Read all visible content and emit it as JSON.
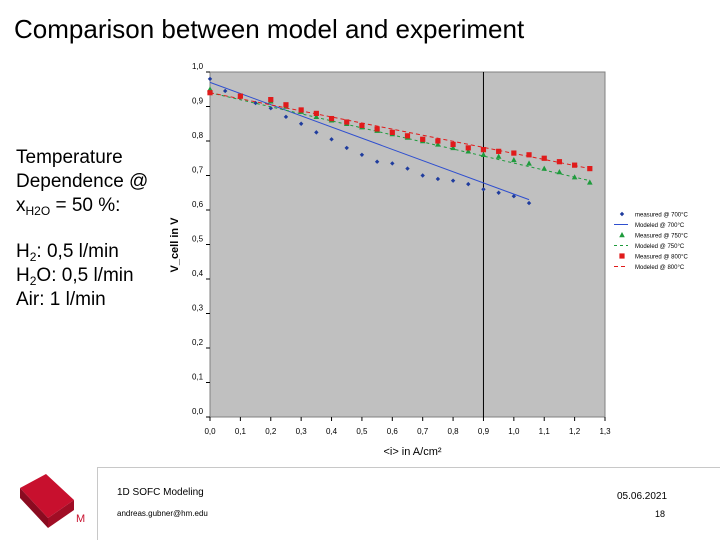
{
  "slide": {
    "title": "Comparison between model and experiment",
    "conditions_heading": [
      "Temperature",
      "Dependence @"
    ],
    "x_h2o": {
      "x": "x",
      "sub": "H2O",
      "rest": " = 50 %:"
    },
    "flows": [
      {
        "pre": "H",
        "sub": "2",
        "post": ": 0,5 l/min"
      },
      {
        "pre": "H",
        "sub": "2",
        "post": "O: 0,5 l/min"
      },
      {
        "pre": "Air: 1 l/min",
        "sub": "",
        "post": ""
      }
    ]
  },
  "footer": {
    "title": "1D SOFC Modeling",
    "email": "andreas.gubner@hm.edu",
    "date": "05.06.2021",
    "page": "18"
  },
  "logo": {
    "letter": "M",
    "color": "#c8102e"
  },
  "chart_data": {
    "type": "scatter",
    "title": "",
    "xlabel": "<i> in A/cm²",
    "ylabel": "V_cell in V",
    "xlim": [
      0.0,
      1.3
    ],
    "ylim": [
      0.0,
      1.0
    ],
    "xticks": [
      "0,0",
      "0,1",
      "0,2",
      "0,3",
      "0,4",
      "0,5",
      "0,6",
      "0,7",
      "0,8",
      "0,9",
      "1,0",
      "1,1",
      "1,2",
      "1,3"
    ],
    "yticks": [
      "0,0",
      "0,1",
      "0,2",
      "0,3",
      "0,4",
      "0,5",
      "0,6",
      "0,7",
      "0,8",
      "0,9",
      "1,0"
    ],
    "vline_x": 0.9,
    "background": "#c0c0c0",
    "grid": false,
    "legend_position": "right",
    "series": [
      {
        "name": "measured @ 700°C",
        "kind": "points",
        "marker": "diamond",
        "color": "#1f3c9e",
        "x": [
          0.0,
          0.05,
          0.1,
          0.15,
          0.2,
          0.25,
          0.3,
          0.35,
          0.4,
          0.45,
          0.5,
          0.55,
          0.6,
          0.65,
          0.7,
          0.75,
          0.8,
          0.85,
          0.9,
          0.95,
          1.0,
          1.05
        ],
        "y": [
          0.98,
          0.945,
          0.93,
          0.91,
          0.895,
          0.87,
          0.85,
          0.825,
          0.805,
          0.78,
          0.76,
          0.74,
          0.735,
          0.72,
          0.7,
          0.69,
          0.685,
          0.675,
          0.66,
          0.65,
          0.64,
          0.62
        ]
      },
      {
        "name": "Modeled @ 700°C",
        "kind": "line",
        "dash": "",
        "color": "#2f4fcf",
        "x": [
          0.0,
          1.05
        ],
        "y": [
          0.97,
          0.63
        ]
      },
      {
        "name": "Measured @ 750°C",
        "kind": "points",
        "marker": "triangle",
        "color": "#1e9b3c",
        "x": [
          0.0,
          0.1,
          0.2,
          0.25,
          0.3,
          0.35,
          0.4,
          0.45,
          0.5,
          0.55,
          0.6,
          0.65,
          0.7,
          0.75,
          0.8,
          0.85,
          0.9,
          0.95,
          1.0,
          1.05,
          1.1,
          1.15,
          1.2,
          1.25
        ],
        "y": [
          0.95,
          0.93,
          0.915,
          0.9,
          0.885,
          0.87,
          0.86,
          0.85,
          0.84,
          0.83,
          0.82,
          0.81,
          0.8,
          0.79,
          0.78,
          0.77,
          0.76,
          0.755,
          0.745,
          0.735,
          0.72,
          0.71,
          0.695,
          0.68
        ]
      },
      {
        "name": "Modeled @ 750°C",
        "kind": "line",
        "dash": "3,3",
        "color": "#1e9b3c",
        "x": [
          0.0,
          1.25
        ],
        "y": [
          0.94,
          0.685
        ]
      },
      {
        "name": "Measured @ 800°C",
        "kind": "points",
        "marker": "square",
        "color": "#e01b1b",
        "x": [
          0.0,
          0.1,
          0.2,
          0.25,
          0.3,
          0.35,
          0.4,
          0.45,
          0.5,
          0.55,
          0.6,
          0.65,
          0.7,
          0.75,
          0.8,
          0.85,
          0.9,
          0.95,
          1.0,
          1.05,
          1.1,
          1.15,
          1.2,
          1.25
        ],
        "y": [
          0.94,
          0.93,
          0.92,
          0.905,
          0.89,
          0.88,
          0.865,
          0.855,
          0.845,
          0.835,
          0.825,
          0.815,
          0.805,
          0.8,
          0.79,
          0.78,
          0.775,
          0.77,
          0.765,
          0.76,
          0.75,
          0.74,
          0.73,
          0.72
        ]
      },
      {
        "name": "Modeled @ 800°C",
        "kind": "line",
        "dash": "4,3",
        "color": "#e01b1b",
        "x": [
          0.0,
          1.25
        ],
        "y": [
          0.94,
          0.72
        ]
      }
    ]
  }
}
